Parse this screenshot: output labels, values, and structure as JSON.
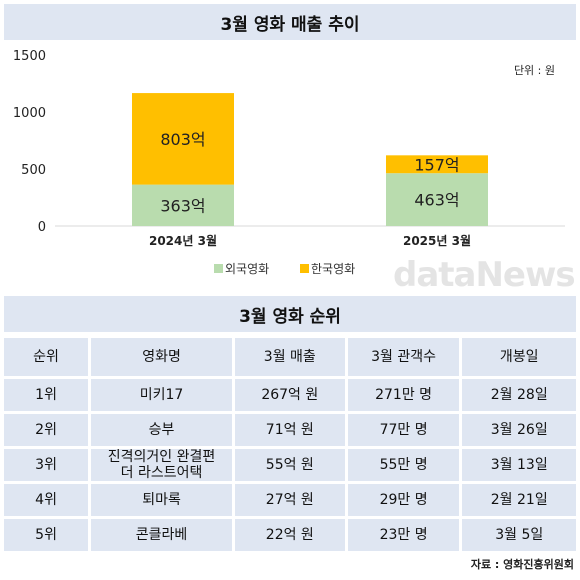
{
  "title": "3월 영화 매출 추이",
  "unit_label": "단위 : 원",
  "watermark": "dataNews",
  "chart_data": {
    "type": "bar",
    "stacked": true,
    "categories": [
      "2024년 3월",
      "2025년 3월"
    ],
    "series": [
      {
        "name": "외국영화",
        "values": [
          363,
          463
        ],
        "labels": [
          "363억",
          "463억"
        ],
        "color": "#b9dcae"
      },
      {
        "name": "한국영화",
        "values": [
          803,
          157
        ],
        "labels": [
          "803억",
          "157억"
        ],
        "color": "#ffbf00"
      }
    ],
    "ylim": [
      0,
      1500
    ],
    "yticks": [
      0,
      500,
      1000,
      1500
    ],
    "ytick_labels": [
      "0",
      "500",
      "1000",
      "1500"
    ],
    "grid": false,
    "legend_position": "bottom"
  },
  "ranking": {
    "title": "3월 영화 순위",
    "headers": [
      "순위",
      "영화명",
      "3월 매출",
      "3월 관객수",
      "개봉일"
    ],
    "rows": [
      [
        "1위",
        "미키17",
        "267억 원",
        "271만 명",
        "2월 28일"
      ],
      [
        "2위",
        "승부",
        "71억 원",
        "77만 명",
        "3월 26일"
      ],
      [
        "3위",
        "진격의거인 완결편\n더 라스트어택",
        "55억 원",
        "55만 명",
        "3월 13일"
      ],
      [
        "4위",
        "퇴마록",
        "27억 원",
        "29만 명",
        "2월 21일"
      ],
      [
        "5위",
        "콘클라베",
        "22억 원",
        "23만 명",
        "3월 5일"
      ]
    ]
  },
  "source": "자료 : 영화진흥위원회"
}
